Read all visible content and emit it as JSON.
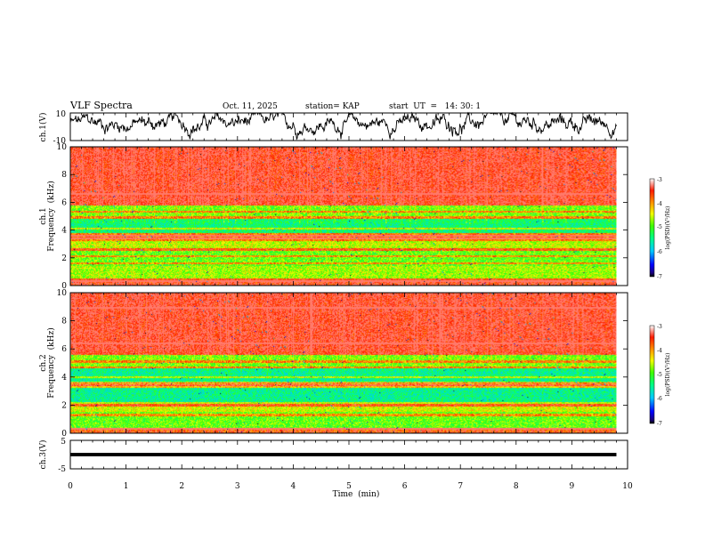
{
  "chart_data": {
    "type": "heatmap",
    "header": {
      "title": "VLF Spectra",
      "date": "Oct. 11, 2025",
      "station": "station= KAP",
      "start_time": "start  UT  =   14: 30: 1"
    },
    "x_axis": {
      "label": "Time  (min)",
      "range": [
        0,
        10
      ],
      "ticks": [
        0,
        1,
        2,
        3,
        4,
        5,
        6,
        7,
        8,
        9,
        10
      ],
      "tick_labels": [
        "0",
        "1",
        "2",
        "3",
        "4",
        "5",
        "6",
        "7",
        "8",
        "9",
        "10"
      ],
      "data_end": 9.8
    },
    "ch1_waveform": {
      "ylabel": "ch.1(V)",
      "ylim": [
        -10,
        10
      ],
      "tick_labels": [
        "10",
        "-10"
      ],
      "mean": 2.5,
      "amplitude_range": [
        -9,
        10
      ]
    },
    "ch1_spectrogram": {
      "ylabel_line1": "ch.1",
      "ylabel_line2": "Frequency  (kHz)",
      "ylim": [
        0,
        10
      ],
      "yticks": [
        0,
        2,
        4,
        6,
        8,
        10
      ],
      "ytick_labels": [
        "0",
        "2",
        "4",
        "6",
        "8",
        "10"
      ],
      "colorbar": {
        "label": "log(PSD)(V²/Hz)",
        "range": [
          -7,
          -3
        ],
        "tick_labels": [
          "-3",
          "-4",
          "-5",
          "-6",
          "-7"
        ]
      },
      "bands_log_psd": [
        {
          "freq_khz": [
            0.0,
            0.5
          ],
          "level": -3.6
        },
        {
          "freq_khz": [
            0.5,
            1.4
          ],
          "level": -4.7
        },
        {
          "freq_khz": [
            1.4,
            2.5
          ],
          "level": -4.9
        },
        {
          "freq_khz": [
            2.5,
            3.2
          ],
          "level": -4.6
        },
        {
          "freq_khz": [
            3.2,
            3.8
          ],
          "level": -3.9
        },
        {
          "freq_khz": [
            3.8,
            4.8
          ],
          "level": -5.4
        },
        {
          "freq_khz": [
            4.8,
            5.8
          ],
          "level": -4.9
        },
        {
          "freq_khz": [
            5.8,
            10.0
          ],
          "level": -3.5
        }
      ],
      "noise_lines_khz": [
        0.3,
        1.6,
        2.1,
        2.6,
        3.4,
        3.6,
        4.1,
        4.9,
        5.3,
        6.6
      ]
    },
    "ch2_spectrogram": {
      "ylabel_line1": "ch.2",
      "ylabel_line2": "Frequency  (kHz)",
      "ylim": [
        0,
        10
      ],
      "yticks": [
        0,
        2,
        4,
        6,
        8,
        10
      ],
      "ytick_labels": [
        "0",
        "2",
        "4",
        "6",
        "8",
        "10"
      ],
      "colorbar": {
        "label": "log(PSD)(V²/Hz)",
        "range": [
          -7,
          -3
        ],
        "tick_labels": [
          "-3",
          "-4",
          "-5",
          "-6",
          "-7"
        ]
      },
      "bands_log_psd": [
        {
          "freq_khz": [
            0.0,
            0.4
          ],
          "level": -3.8
        },
        {
          "freq_khz": [
            0.4,
            1.5
          ],
          "level": -4.9
        },
        {
          "freq_khz": [
            1.5,
            2.2
          ],
          "level": -4.5
        },
        {
          "freq_khz": [
            2.2,
            3.2
          ],
          "level": -5.5
        },
        {
          "freq_khz": [
            3.2,
            3.6
          ],
          "level": -4.2
        },
        {
          "freq_khz": [
            3.6,
            4.6
          ],
          "level": -5.5
        },
        {
          "freq_khz": [
            4.6,
            5.6
          ],
          "level": -4.9
        },
        {
          "freq_khz": [
            5.6,
            10.0
          ],
          "level": -3.5
        }
      ],
      "noise_lines_khz": [
        0.3,
        1.3,
        2.0,
        3.4,
        3.6,
        4.0,
        4.7,
        5.1,
        6.4,
        8.9
      ]
    },
    "ch3_waveform": {
      "ylabel": "ch.3(V)",
      "ylim": [
        -5,
        5
      ],
      "tick_labels": [
        "5",
        "-5"
      ],
      "level": 0,
      "thickness_v": 0.6
    }
  }
}
